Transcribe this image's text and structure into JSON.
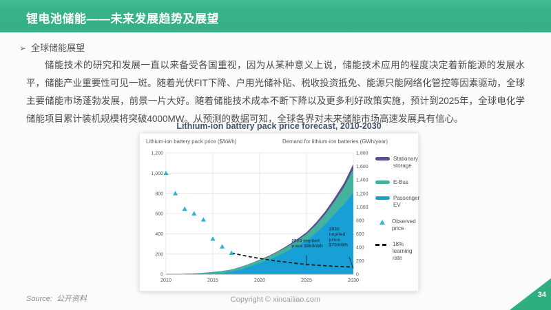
{
  "header": {
    "title": "锂电池储能——未来发展趋势及展望"
  },
  "section": {
    "bullet": "➢",
    "heading": "全球储能展望"
  },
  "paragraph": "储能技术的研究和发展一直以来备受各国重视，因为从某种意义上说，储能技术应用的程度决定着新能源的发展水平，储能产业重要性可见一斑。随着光伏FIT下降、户用光储补贴、税收投资抵免、能源只能网络化管控等因素驱动，全球主要储能市场蓬勃发展，前景一片大好。随着储能技术成本不断下降以及更多利好政策实施，预计到2025年，全球电化学储能项目累计装机规模将突破4000MW。从预测的数据可知，全球各界对未来储能市场高速发展具有信心。",
  "footer": {
    "source_label": "Source:",
    "source_text": "公开资料",
    "copyright": "Copyright © xincailiao.com",
    "page": "34"
  },
  "colors": {
    "header_green": "#38b289",
    "page_triangle_green": "#2fae80",
    "stationary_purple": "#5b4e91",
    "ebus_teal": "#44b39e",
    "ev_blue": "#18a0d6",
    "observed_cyan": "#2fb4d8",
    "learning_black": "#141414",
    "annotation_navy": "#17475f",
    "title_slate": "#44546a"
  },
  "chart_data": {
    "type": "area",
    "title": "Lithium-ion battery pack price forecast, 2010-2030",
    "left_axis": {
      "label": "Lithium-ion battery pack price ($/kWh)",
      "min": 0,
      "max": 1200,
      "step": 200
    },
    "right_axis": {
      "label": "Demand for lithium-ion batteries (GWh/year)",
      "min": 0,
      "max": 1800,
      "step": 200
    },
    "x": {
      "min": 2010,
      "max": 2030,
      "ticks": [
        2010,
        2015,
        2020,
        2025,
        2030
      ]
    },
    "years": [
      2010,
      2011,
      2012,
      2013,
      2014,
      2015,
      2016,
      2017,
      2018,
      2019,
      2020,
      2021,
      2022,
      2023,
      2024,
      2025,
      2026,
      2027,
      2028,
      2029,
      2030
    ],
    "series": [
      {
        "name": "Passenger EV",
        "color": "#18a0d6",
        "axis": "right",
        "values": [
          0,
          1,
          2,
          3,
          6,
          10,
          18,
          35,
          70,
          115,
          165,
          215,
          275,
          345,
          420,
          500,
          610,
          740,
          890,
          1040,
          1210
        ]
      },
      {
        "name": "E-Bus",
        "color": "#44b39e",
        "axis": "right",
        "values": [
          1,
          2,
          4,
          8,
          14,
          22,
          28,
          32,
          36,
          40,
          44,
          50,
          58,
          68,
          80,
          95,
          120,
          150,
          190,
          250,
          350
        ]
      },
      {
        "name": "Stationary storage",
        "color": "#5b4e91",
        "axis": "right",
        "values": [
          0,
          0,
          0,
          0,
          0,
          1,
          1,
          2,
          3,
          4,
          6,
          9,
          12,
          16,
          21,
          27,
          34,
          42,
          52,
          62,
          75
        ]
      }
    ],
    "observed_price": {
      "name": "Observed price",
      "color": "#2fb4d8",
      "axis": "left",
      "points": [
        [
          2010,
          1000
        ],
        [
          2011,
          800
        ],
        [
          2012,
          645
        ],
        [
          2013,
          600
        ],
        [
          2014,
          540
        ],
        [
          2015,
          350
        ],
        [
          2016,
          273
        ],
        [
          2017,
          210
        ]
      ]
    },
    "learning_rate": {
      "name": "18% learning rate",
      "color": "#141414",
      "axis": "left",
      "points": [
        [
          2017,
          210
        ],
        [
          2018,
          190
        ],
        [
          2019,
          172
        ],
        [
          2020,
          156
        ],
        [
          2021,
          141
        ],
        [
          2022,
          128
        ],
        [
          2023,
          117
        ],
        [
          2024,
          106
        ],
        [
          2025,
          96
        ],
        [
          2026,
          90
        ],
        [
          2027,
          84
        ],
        [
          2028,
          78
        ],
        [
          2029,
          74
        ],
        [
          2030,
          70
        ]
      ]
    },
    "annotations": [
      {
        "lines": [
          "2025 implied",
          "price $96/kWh"
        ],
        "target": {
          "year": 2025,
          "price": 96
        },
        "label_anchor": {
          "year": 2023.4,
          "price": 318
        },
        "pointer_from": {
          "year": 2025,
          "price": 185
        }
      },
      {
        "lines": [
          "2030",
          "implied",
          "price",
          "$70/kWh"
        ],
        "target": {
          "year": 2030,
          "price": 70
        },
        "label_anchor": {
          "year": 2027.4,
          "price": 432
        },
        "pointer_from": {
          "year": 2029.55,
          "price": 172
        }
      }
    ],
    "legend": [
      {
        "type": "bar",
        "color": "#5b4e91",
        "label": "Stationary storage"
      },
      {
        "type": "bar",
        "color": "#44b39e",
        "label": "E-Bus"
      },
      {
        "type": "bar",
        "color": "#18a0d6",
        "label": "Passenger EV"
      },
      {
        "type": "triangle",
        "color": "#2fb4d8",
        "label": "Observed price"
      },
      {
        "type": "dash",
        "color": "#141414",
        "label": "18% learning rate"
      }
    ],
    "layout": {
      "grid": true,
      "legend_position": "right"
    }
  }
}
